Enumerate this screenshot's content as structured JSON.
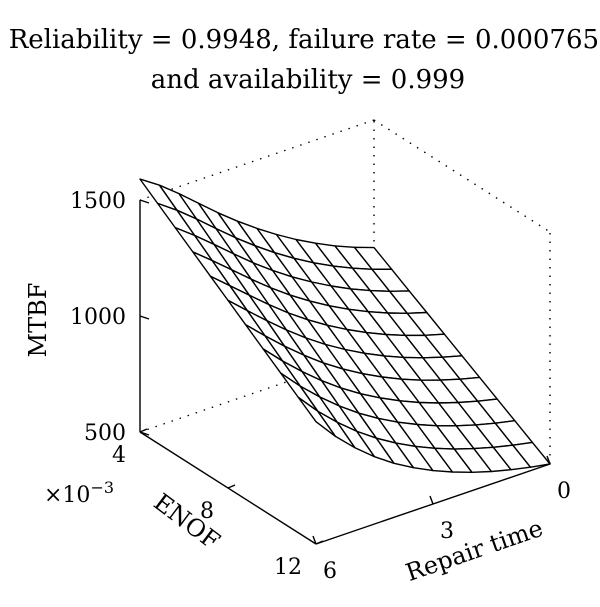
{
  "chart_data": {
    "type": "surface",
    "title": [
      "Reliability = 0.9948, failure rate = 0.000765,",
      "and availability = 0.999"
    ],
    "xlabel": "Repair time",
    "ylabel": "ENOF",
    "zlabel": "MTBF",
    "x_ticks": [
      "0",
      "3",
      "6"
    ],
    "y_ticks": [
      "4",
      "8",
      "12"
    ],
    "y_multiplier": "×10",
    "y_multiplier_exp": "−3",
    "z_ticks": [
      "500",
      "1000",
      "1500"
    ],
    "xlim": [
      0,
      6
    ],
    "ylim": [
      0.004,
      0.012
    ],
    "zlim": [
      500,
      1500
    ],
    "grid": false,
    "mesh": {
      "repair_time": [
        0,
        0.5,
        1,
        1.5,
        2,
        2.5,
        3,
        3.5,
        4,
        4.5,
        5,
        5.5,
        6
      ],
      "enof": [
        0.004,
        0.0048,
        0.0056,
        0.0064,
        0.0072,
        0.008,
        0.0088,
        0.0096,
        0.0104,
        0.0112,
        0.012
      ],
      "mtbf_at_enof_min": [
        500,
        515,
        533,
        554,
        579,
        609,
        644,
        685,
        733,
        790,
        857,
        935,
        1027
      ],
      "mtbf_at_enof_max": [
        950,
        980,
        1015,
        1055,
        1100,
        1150,
        1205,
        1265,
        1330,
        1400,
        1470,
        1535,
        1590
      ]
    }
  }
}
